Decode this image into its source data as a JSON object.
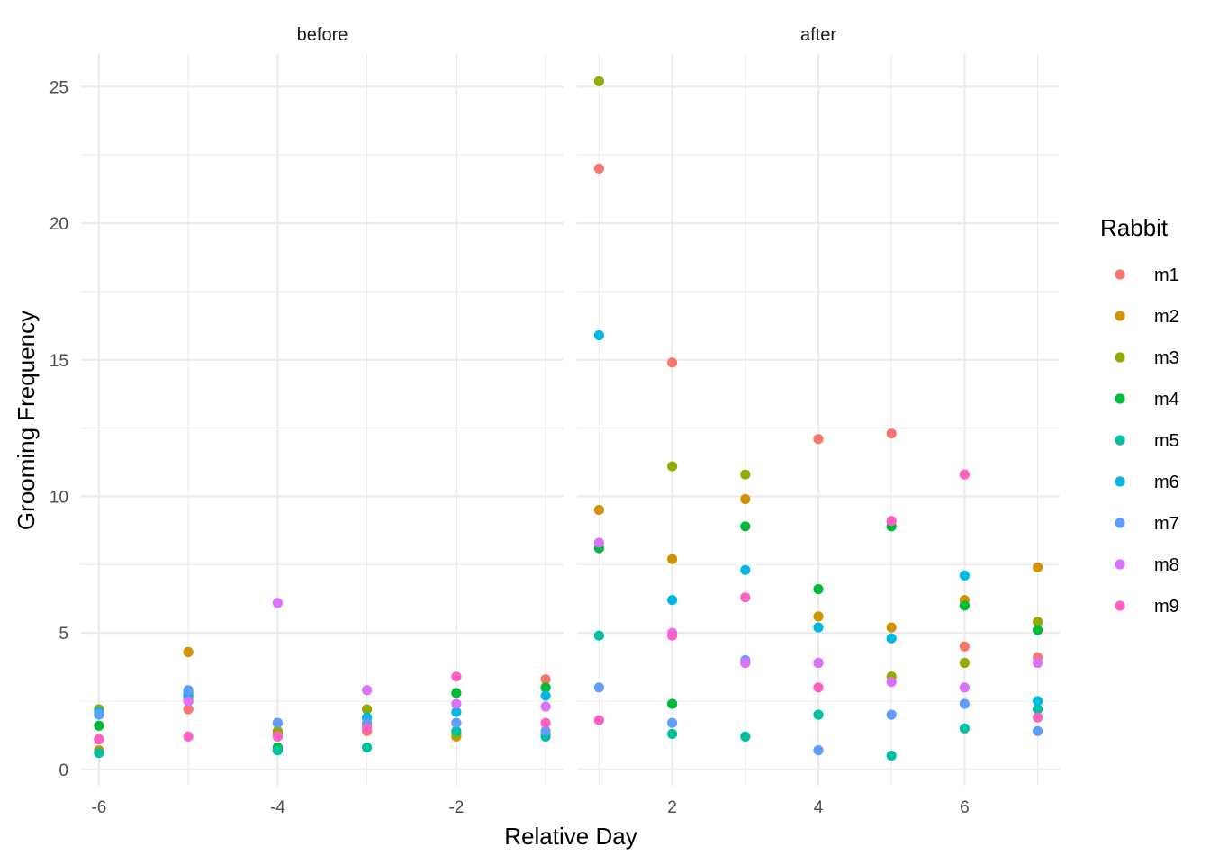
{
  "chart_data": {
    "type": "scatter",
    "title": "",
    "xlabel": "Relative Day",
    "ylabel": "Grooming Frequency",
    "ylim": [
      -0.6,
      26.2
    ],
    "yticks": [
      0,
      5,
      10,
      15,
      20,
      25
    ],
    "grid": true,
    "legend": {
      "title": "Rabbit",
      "position": "right",
      "entries": [
        "m1",
        "m2",
        "m3",
        "m4",
        "m5",
        "m6",
        "m7",
        "m8",
        "m9"
      ]
    },
    "colors": {
      "m1": "#F8766D",
      "m2": "#D39200",
      "m3": "#93AA00",
      "m4": "#00BA38",
      "m5": "#00C19F",
      "m6": "#00B9E3",
      "m7": "#619CFF",
      "m8": "#DB72FB",
      "m9": "#FF61C3"
    },
    "panels": [
      {
        "name": "before",
        "xlim": [
          -6.2,
          -0.8
        ],
        "xticks": [
          -6,
          -4,
          -2
        ],
        "series": [
          {
            "name": "m1",
            "x": [
              -6,
              -5,
              -4,
              -3,
              -2,
              -1
            ],
            "y": [
              0.6,
              2.2,
              1.3,
              1.4,
              1.7,
              3.3
            ]
          },
          {
            "name": "m2",
            "x": [
              -6,
              -5,
              -4,
              -3,
              -2,
              -1
            ],
            "y": [
              0.7,
              4.3,
              0.7,
              1.6,
              1.2,
              1.3
            ]
          },
          {
            "name": "m3",
            "x": [
              -6,
              -5,
              -4,
              -3,
              -2,
              -1
            ],
            "y": [
              2.2,
              2.5,
              1.4,
              2.2,
              1.3,
              3.0
            ]
          },
          {
            "name": "m4",
            "x": [
              -6,
              -5,
              -4,
              -3,
              -2,
              -1
            ],
            "y": [
              1.6,
              2.7,
              0.8,
              1.9,
              2.8,
              3.0
            ]
          },
          {
            "name": "m5",
            "x": [
              -6,
              -5,
              -4,
              -3,
              -2,
              -1
            ],
            "y": [
              0.6,
              2.6,
              0.7,
              0.8,
              1.4,
              1.2
            ]
          },
          {
            "name": "m6",
            "x": [
              -6,
              -5,
              -4,
              -3,
              -2,
              -1
            ],
            "y": [
              2.1,
              2.8,
              1.7,
              1.9,
              2.1,
              2.7
            ]
          },
          {
            "name": "m7",
            "x": [
              -6,
              -5,
              -4,
              -3,
              -2,
              -1
            ],
            "y": [
              2.0,
              2.9,
              1.7,
              1.7,
              1.7,
              1.4
            ]
          },
          {
            "name": "m8",
            "x": [
              -6,
              -5,
              -4,
              -3,
              -2,
              -1
            ],
            "y": [
              1.1,
              2.5,
              6.1,
              2.9,
              2.4,
              2.3
            ]
          },
          {
            "name": "m9",
            "x": [
              -6,
              -5,
              -4,
              -3,
              -2,
              -1
            ],
            "y": [
              1.1,
              1.2,
              1.2,
              1.5,
              3.4,
              1.7
            ]
          }
        ]
      },
      {
        "name": "after",
        "xlim": [
          0.7,
          7.3
        ],
        "xticks": [
          2,
          4,
          6
        ],
        "series": [
          {
            "name": "m1",
            "x": [
              1,
              2,
              3,
              4,
              5,
              6,
              7
            ],
            "y": [
              22.0,
              14.9,
              3.9,
              12.1,
              12.3,
              4.5,
              4.1
            ]
          },
          {
            "name": "m2",
            "x": [
              1,
              2,
              3,
              4,
              5,
              6,
              7
            ],
            "y": [
              9.5,
              7.7,
              9.9,
              5.6,
              5.2,
              6.2,
              7.4
            ]
          },
          {
            "name": "m3",
            "x": [
              1,
              2,
              3,
              4,
              5,
              6,
              7
            ],
            "y": [
              25.2,
              11.1,
              10.8,
              3.9,
              3.4,
              3.9,
              5.4
            ]
          },
          {
            "name": "m4",
            "x": [
              1,
              2,
              3,
              4,
              5,
              6,
              7
            ],
            "y": [
              8.1,
              2.4,
              8.9,
              6.6,
              8.9,
              6.0,
              5.1
            ]
          },
          {
            "name": "m5",
            "x": [
              1,
              2,
              3,
              4,
              5,
              6,
              7
            ],
            "y": [
              4.9,
              1.3,
              1.2,
              2.0,
              0.5,
              1.5,
              2.2
            ]
          },
          {
            "name": "m6",
            "x": [
              1,
              2,
              3,
              4,
              5,
              6,
              7
            ],
            "y": [
              15.9,
              6.2,
              7.3,
              5.2,
              4.8,
              7.1,
              2.5
            ]
          },
          {
            "name": "m7",
            "x": [
              1,
              2,
              3,
              4,
              5,
              6,
              7
            ],
            "y": [
              3.0,
              1.7,
              4.0,
              0.7,
              2.0,
              2.4,
              1.4
            ]
          },
          {
            "name": "m8",
            "x": [
              1,
              2,
              3,
              4,
              5,
              6,
              7
            ],
            "y": [
              8.3,
              5.0,
              3.9,
              3.9,
              3.2,
              3.0,
              3.9
            ]
          },
          {
            "name": "m9",
            "x": [
              1,
              2,
              3,
              4,
              5,
              6,
              7
            ],
            "y": [
              1.8,
              4.9,
              6.3,
              3.0,
              9.1,
              10.8,
              1.9
            ]
          }
        ]
      }
    ]
  }
}
